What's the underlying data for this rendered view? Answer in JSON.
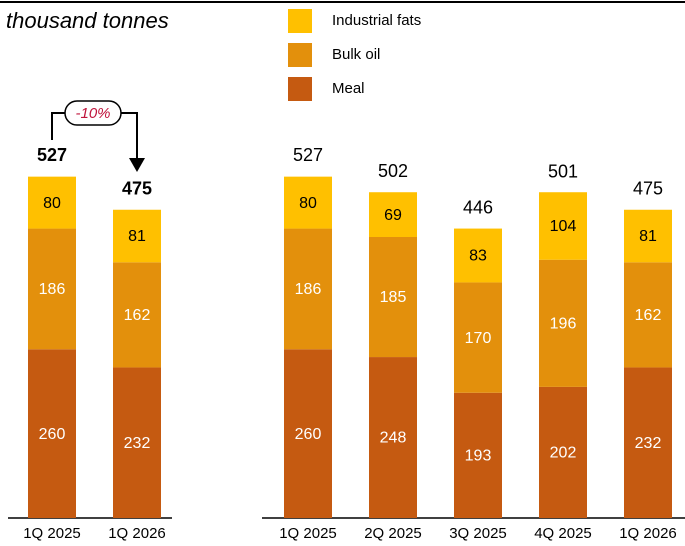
{
  "chart_data": {
    "type": "stacked_bar",
    "subtitle": "thousand tonnes",
    "annotation": "-10%",
    "categories": [
      "1Q 2025",
      "1Q 2026",
      "1Q 2025",
      "2Q 2025",
      "3Q 2025",
      "4Q 2025",
      "1Q 2026"
    ],
    "series": [
      {
        "name": "Meal",
        "color": "#c55a11",
        "values": [
          260,
          232,
          260,
          248,
          193,
          202,
          232
        ]
      },
      {
        "name": "Bulk oil",
        "color": "#e3900c",
        "values": [
          186,
          162,
          186,
          185,
          170,
          196,
          162
        ]
      },
      {
        "name": "Industrial fats",
        "color": "#ffc000",
        "values": [
          80,
          81,
          80,
          69,
          83,
          104,
          81
        ]
      }
    ],
    "totals": [
      527,
      475,
      527,
      502,
      446,
      501,
      475
    ]
  }
}
